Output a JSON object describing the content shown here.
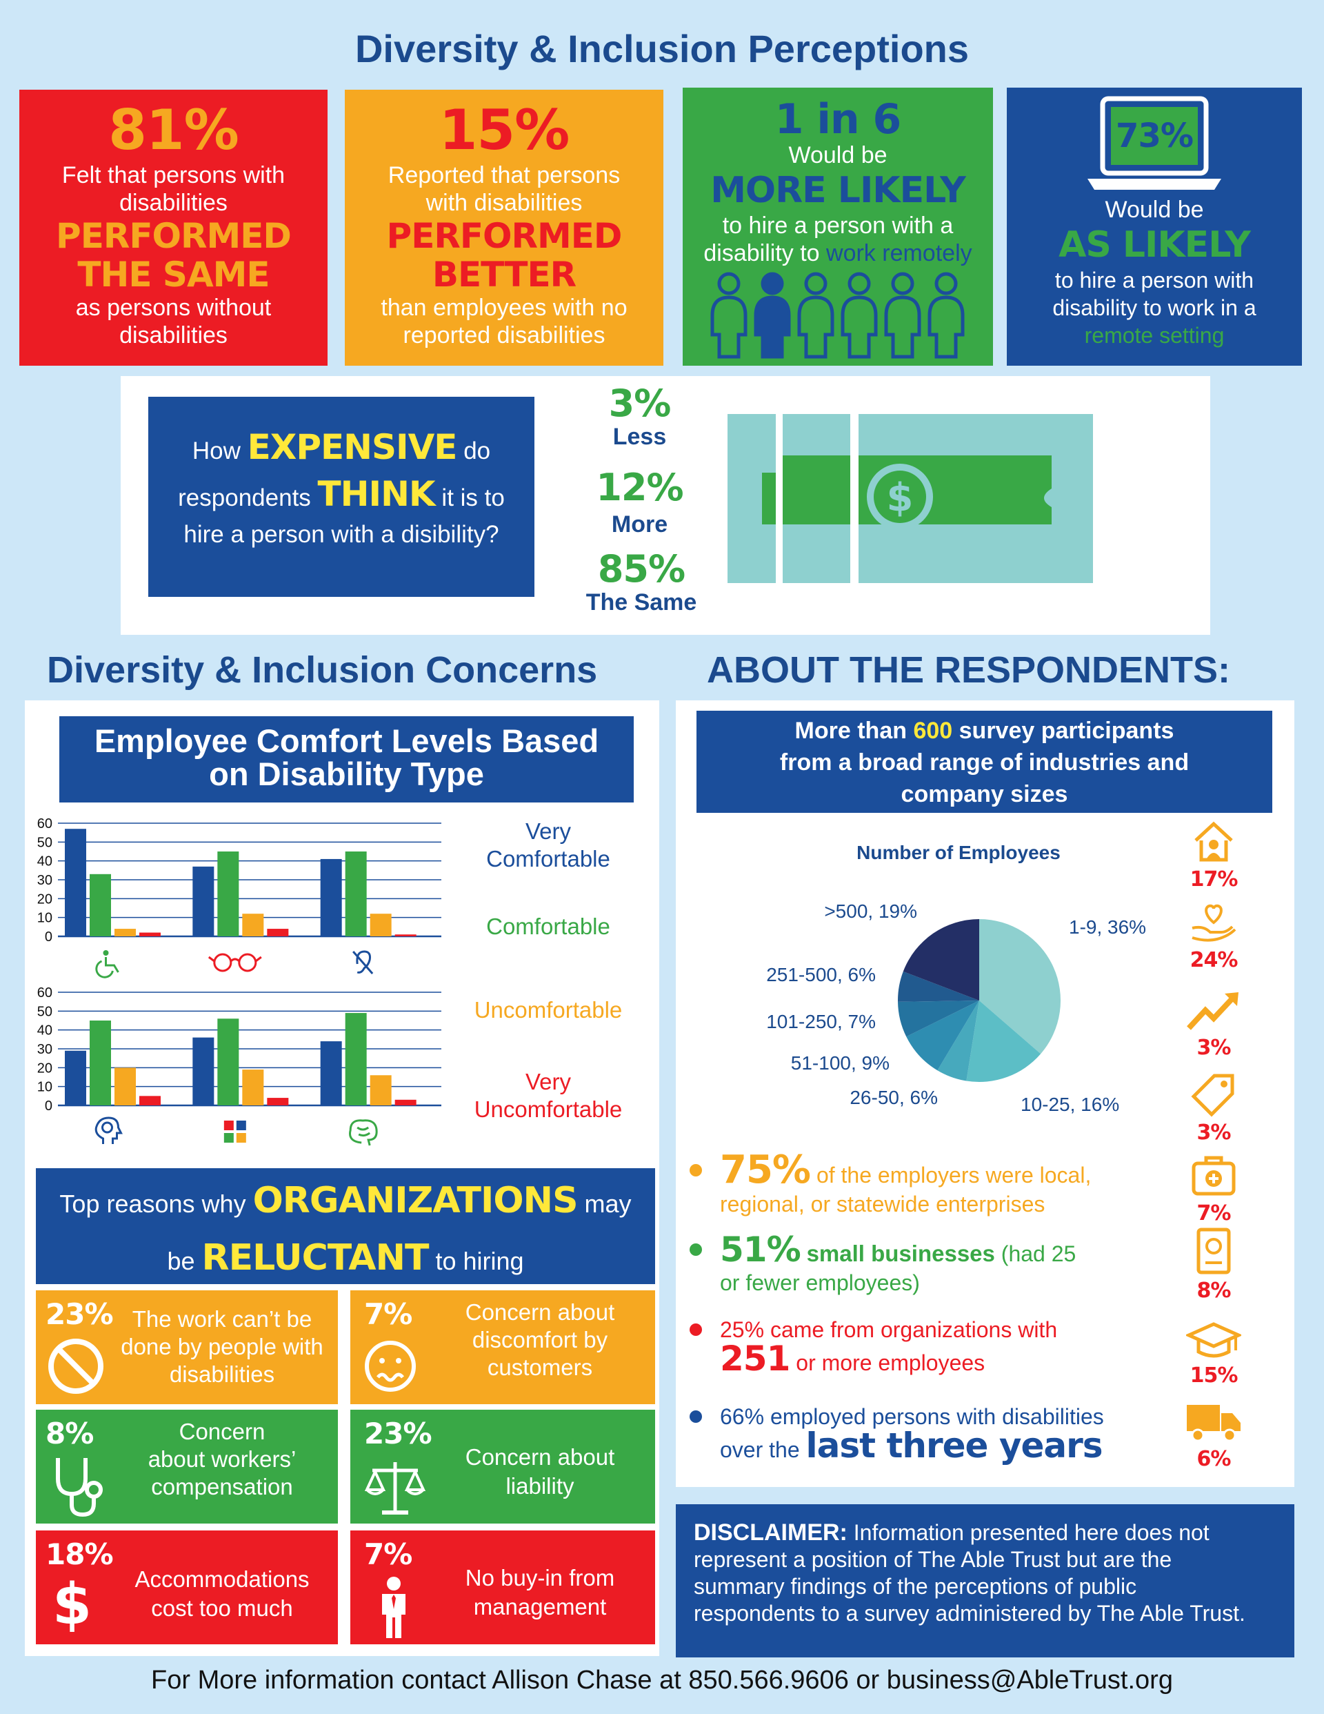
{
  "colors": {
    "red": "#ec1c24",
    "orange": "#f6a821",
    "green": "#39a846",
    "blue": "#1b4e9b",
    "yellow": "#ffe83a",
    "teal": "#8ed0cf",
    "navy": "#1b4a8e"
  },
  "title": "Diversity & Inclusion Perceptions",
  "perceptions": [
    {
      "stat": "81%",
      "line1": "Felt that persons with",
      "line2": "disabilities",
      "em1": "PERFORMED",
      "em2": "THE SAME",
      "line3": "as persons without",
      "line4": "disabilities"
    },
    {
      "stat": "15%",
      "line1": "Reported that persons",
      "line2": "with disabilities",
      "em1": "PERFORMED",
      "em2": "BETTER",
      "line3": "than employees with no",
      "line4": "reported disabilities"
    },
    {
      "stat": "1 in 6",
      "line1": "Would be",
      "em1": "MORE LIKELY",
      "line2": "to hire a person with a",
      "line3a": "disability to",
      "line3b": "work remotely",
      "icon": "people-icon"
    },
    {
      "stat": "73%",
      "line1": "Would be",
      "em1": "AS LIKELY",
      "line2": "to hire a person with",
      "line3": "disability to work in a",
      "line4": "remote setting",
      "icon": "laptop-icon"
    }
  ],
  "expense": {
    "q1": "How",
    "q1em": "EXPENSIVE",
    "q1b": "do",
    "q2": "respondents",
    "q2em": "THINK",
    "q2b": "it is to",
    "q3": "hire a person with a disibility?",
    "answers": [
      {
        "pct": "3%",
        "label": "Less"
      },
      {
        "pct": "12%",
        "label": "More"
      },
      {
        "pct": "85%",
        "label": "The Same"
      }
    ],
    "icon": "money-bill-icon"
  },
  "concerns_title": "Diversity & Inclusion Concerns",
  "comfort": {
    "title_line1": "Employee Comfort Levels Based",
    "title_line2": "on Disability Type",
    "legend": [
      {
        "line1": "Very",
        "line2": "Comfortable",
        "color": "#1b4e9b"
      },
      {
        "line1": "Comfortable",
        "line2": "",
        "color": "#39a846"
      },
      {
        "line1": "Uncomfortable",
        "line2": "",
        "color": "#f6a821"
      },
      {
        "line1": "Very",
        "line2": "Uncomfortable",
        "color": "#ec1c24"
      }
    ]
  },
  "chart_data": [
    {
      "type": "bar",
      "ylim": [
        0,
        60
      ],
      "yticks": [
        "0",
        "10",
        "20",
        "30",
        "40",
        "50",
        "60"
      ],
      "categories": [
        "wheelchair-icon",
        "glasses-icon",
        "hearing-icon"
      ],
      "series": [
        {
          "name": "Very Comfortable",
          "values": [
            57,
            37,
            41
          ]
        },
        {
          "name": "Comfortable",
          "values": [
            33,
            45,
            45
          ]
        },
        {
          "name": "Uncomfortable",
          "values": [
            4,
            12,
            12
          ]
        },
        {
          "name": "Very Uncomfortable",
          "values": [
            2,
            4,
            1
          ]
        }
      ]
    },
    {
      "type": "bar",
      "ylim": [
        0,
        60
      ],
      "yticks": [
        "0",
        "10",
        "20",
        "30",
        "40",
        "50",
        "60"
      ],
      "categories": [
        "head-brain-icon",
        "puzzle-icon",
        "brain-icon"
      ],
      "series": [
        {
          "name": "Very Comfortable",
          "values": [
            29,
            36,
            34
          ]
        },
        {
          "name": "Comfortable",
          "values": [
            45,
            46,
            49
          ]
        },
        {
          "name": "Uncomfortable",
          "values": [
            20,
            19,
            16
          ]
        },
        {
          "name": "Very Uncomfortable",
          "values": [
            5,
            4,
            3
          ]
        }
      ]
    },
    {
      "type": "pie",
      "title": "Number of Employees",
      "slices": [
        {
          "label": "1-9, 36%",
          "value": 36,
          "color": "#8ed0cf"
        },
        {
          "label": "10-25, 16%",
          "value": 16,
          "color": "#5cbec6"
        },
        {
          "label": "26-50, 6%",
          "value": 6,
          "color": "#47a9bd"
        },
        {
          "label": "51-100, 9%",
          "value": 9,
          "color": "#2e8db1"
        },
        {
          "label": "101-250, 7%",
          "value": 7,
          "color": "#24739f"
        },
        {
          "label": "251-500, 6%",
          "value": 6,
          "color": "#215a8f"
        },
        {
          "label": ">500, 19%",
          "value": 19,
          "color": "#232f66"
        }
      ]
    }
  ],
  "reluctant": {
    "l1a": "Top reasons why",
    "l1em": "ORGANIZATIONS",
    "l1b": "may",
    "l2a": "be",
    "l2em": "RELUCTANT",
    "l2b": "to hiring",
    "reasons": [
      {
        "pct": "23%",
        "text1": "The work can’t be",
        "text2": "done by people with",
        "text3": "disabilities",
        "icon": "no-symbol-icon",
        "color": "#f6a821"
      },
      {
        "pct": "7%",
        "text1": "Concern about",
        "text2": "discomfort by",
        "text3": "customers",
        "icon": "worried-face-icon",
        "color": "#f6a821"
      },
      {
        "pct": "8%",
        "text1": "Concern",
        "text2": "about workers’",
        "text3": "compensation",
        "icon": "stethoscope-icon",
        "color": "#39a846"
      },
      {
        "pct": "23%",
        "text1": "Concern about",
        "text2": "liability",
        "text3": "",
        "icon": "scales-icon",
        "color": "#39a846"
      },
      {
        "pct": "18%",
        "text1": "Accommodations",
        "text2": "cost too much",
        "text3": "",
        "icon": "dollar-icon",
        "color": "#ec1c24"
      },
      {
        "pct": "7%",
        "text1": "No buy-in from",
        "text2": "management",
        "text3": "",
        "icon": "manager-icon",
        "color": "#ec1c24"
      }
    ]
  },
  "about": {
    "title": "ABOUT THE RESPONDENTS:",
    "banner1a": "More than",
    "banner1em": "600",
    "banner1b": "survey participants",
    "banner2": "from a broad range of industries and",
    "banner3": "company sizes",
    "bullets": [
      {
        "em": "75%",
        "t1": "of the employers were local,",
        "t2": "regional, or statewide enterprises",
        "color": "#f6a821"
      },
      {
        "em": "51%",
        "bold": "small businesses",
        "t1": "(had 25",
        "t2": "or fewer employees)",
        "color": "#39a846"
      },
      {
        "em": "251",
        "t0": "25% came from organizations with",
        "t1": "or more employees",
        "color": "#ec1c24"
      },
      {
        "em": "last three years",
        "t0": "66% employed persons with disabilities",
        "t1": "over the",
        "color": "#1b4e9b"
      }
    ],
    "industries": [
      {
        "icon": "home-care-icon",
        "pct": "17%"
      },
      {
        "icon": "heart-hand-icon",
        "pct": "24%"
      },
      {
        "icon": "growth-arrow-icon",
        "pct": "3%"
      },
      {
        "icon": "price-tag-icon",
        "pct": "3%"
      },
      {
        "icon": "medical-kit-icon",
        "pct": "7%"
      },
      {
        "icon": "passport-icon",
        "pct": "8%"
      },
      {
        "icon": "graduation-cap-icon",
        "pct": "15%"
      },
      {
        "icon": "truck-icon",
        "pct": "6%"
      }
    ]
  },
  "disclaimer": {
    "label": "DISCLAIMER:",
    "l1": "Information presented here does not",
    "l2": "represent a position of The Able Trust but are the",
    "l3": "summary findings of the perceptions of public",
    "l4": "respondents to a survey administered by The Able Trust."
  },
  "footer": "For More information contact Allison Chase at 850.566.9606 or business@AbleTrust.org"
}
